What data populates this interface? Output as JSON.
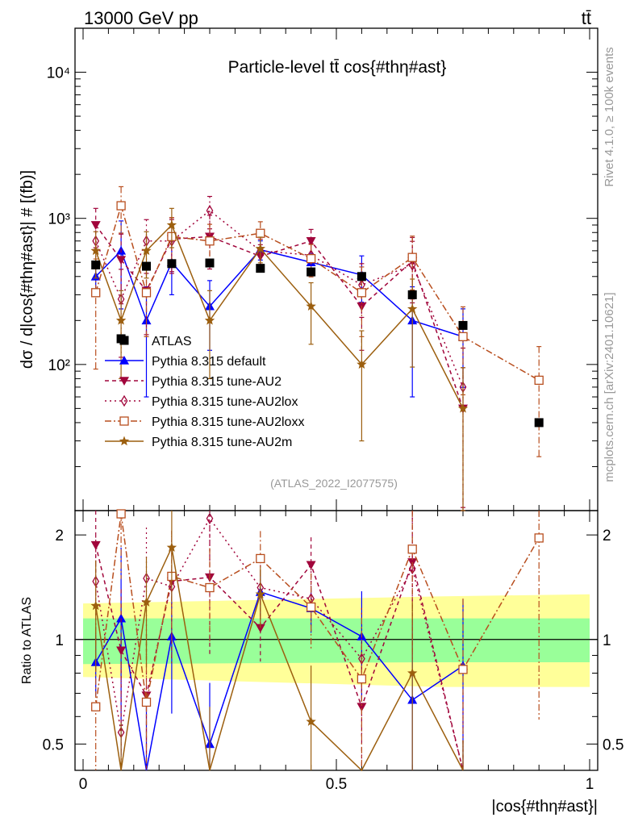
{
  "header": {
    "left": "13000 GeV pp",
    "right": "tt̄"
  },
  "side": {
    "rivet": "Rivet 4.1.0, ≥ 100k events",
    "mcplots": "mcplots.cern.ch [arXiv:2401.10621]"
  },
  "chart_data": {
    "type": "line",
    "title": "Particle-level tt̄ cos{#thη#ast}",
    "analysis_label": "(ATLAS_2022_I2077575)",
    "xlabel": "|cos{#thη#ast}|",
    "ylabel": "dσ / d|cos{#thη#ast}| # [(fb)]",
    "ratio_ylabel": "Ratio to ATLAS",
    "xlim": [
      0,
      1
    ],
    "ylim": [
      10,
      20000
    ],
    "yscale": "log",
    "ratio_ylim": [
      0.42,
      2.35
    ],
    "x_ticks": [
      0,
      0.5,
      1
    ],
    "x_tick_labels": [
      "0",
      "0.5",
      "1"
    ],
    "y_ticks": [
      100,
      1000,
      10000
    ],
    "y_tick_labels": [
      "10²",
      "10³",
      "10⁴"
    ],
    "ratio_ticks": [
      0.5,
      1,
      2
    ],
    "ratio_tick_labels": [
      "0.5",
      "1",
      "2"
    ],
    "x": [
      0.025,
      0.075,
      0.125,
      0.175,
      0.25,
      0.35,
      0.45,
      0.55,
      0.65,
      0.75,
      0.9
    ],
    "reference": {
      "name": "ATLAS",
      "values": [
        480,
        150,
        470,
        490,
        495,
        455,
        430,
        400,
        300,
        185,
        40
      ],
      "band_inner": [
        [
          0,
          0.85,
          1.15
        ],
        [
          0.7,
          0.86,
          1.15
        ],
        [
          1.0,
          0.86,
          1.15
        ]
      ],
      "band_outer": [
        [
          0,
          0.78,
          1.27
        ],
        [
          0.7,
          0.73,
          1.33
        ],
        [
          1.0,
          0.73,
          1.35
        ]
      ]
    },
    "series": [
      {
        "name": "Pythia 8.315 default",
        "color": "#0000ff",
        "marker": "triangle-up",
        "dash": "",
        "x": [
          0.025,
          0.075,
          0.125,
          0.175,
          0.25,
          0.35,
          0.45,
          0.55,
          0.65,
          0.75
        ],
        "values": [
          400,
          600,
          200,
          500,
          250,
          610,
          500,
          410,
          200,
          155
        ],
        "err": [
          0.2,
          0.6,
          0.7,
          0.4,
          0.5,
          0.15,
          0.15,
          0.35,
          0.7,
          0.55
        ],
        "ratio": [
          0.86,
          1.15,
          0.4,
          1.02,
          0.5,
          1.37,
          1.23,
          1.02,
          0.67,
          0.84
        ]
      },
      {
        "name": "Pythia 8.315 tune-AU2",
        "color": "#a1053b",
        "marker": "triangle-down",
        "dash": "5,4",
        "x": [
          0.025,
          0.075,
          0.125,
          0.175,
          0.25,
          0.35,
          0.45,
          0.55,
          0.65,
          0.75
        ],
        "values": [
          900,
          520,
          320,
          720,
          750,
          550,
          700,
          250,
          510,
          50
        ],
        "err": [
          0.3,
          0.5,
          0.5,
          0.4,
          0.4,
          0.2,
          0.2,
          0.5,
          0.45,
          0.9
        ],
        "ratio": [
          1.87,
          0.93,
          0.69,
          1.47,
          1.51,
          1.08,
          1.64,
          0.64,
          1.67,
          0.27
        ]
      },
      {
        "name": "Pythia 8.315 tune-AU2lox",
        "color": "#a1053b",
        "marker": "diamond",
        "dash": "2,4",
        "x": [
          0.025,
          0.075,
          0.125,
          0.175,
          0.25,
          0.35,
          0.45,
          0.55,
          0.65,
          0.75
        ],
        "values": [
          700,
          280,
          700,
          700,
          1130,
          600,
          560,
          350,
          480,
          70
        ],
        "err": [
          0.35,
          0.6,
          0.4,
          0.4,
          0.25,
          0.2,
          0.2,
          0.4,
          0.45,
          0.85
        ],
        "ratio": [
          1.47,
          0.54,
          1.5,
          1.42,
          2.23,
          1.41,
          1.31,
          0.88,
          1.6,
          0.38
        ]
      },
      {
        "name": "Pythia 8.315 tune-AU2loxx",
        "color": "#b84e1e",
        "marker": "square-open",
        "dash": "8,3,2,3",
        "x": [
          0.025,
          0.075,
          0.125,
          0.175,
          0.25,
          0.35,
          0.45,
          0.55,
          0.65,
          0.75,
          0.9
        ],
        "values": [
          310,
          1220,
          310,
          750,
          700,
          790,
          530,
          310,
          540,
          155,
          78
        ],
        "err": [
          0.7,
          0.35,
          0.5,
          0.35,
          0.3,
          0.2,
          0.25,
          0.5,
          0.4,
          0.6,
          0.7
        ],
        "ratio": [
          0.64,
          2.3,
          0.66,
          1.52,
          1.41,
          1.71,
          1.24,
          0.77,
          1.82,
          0.82,
          1.96
        ]
      },
      {
        "name": "Pythia 8.315 tune-AU2m",
        "color": "#9c5f0f",
        "marker": "star",
        "dash": "",
        "x": [
          0.025,
          0.075,
          0.125,
          0.175,
          0.25,
          0.35,
          0.45,
          0.55,
          0.65,
          0.75
        ],
        "values": [
          600,
          200,
          600,
          900,
          200,
          620,
          250,
          100,
          240,
          50
        ],
        "err": [
          0.35,
          0.6,
          0.35,
          0.3,
          0.6,
          0.2,
          0.45,
          0.7,
          0.6,
          0.9
        ],
        "ratio": [
          1.25,
          0.36,
          1.28,
          1.84,
          0.4,
          1.35,
          0.58,
          0.25,
          0.8,
          0.27
        ]
      }
    ]
  }
}
